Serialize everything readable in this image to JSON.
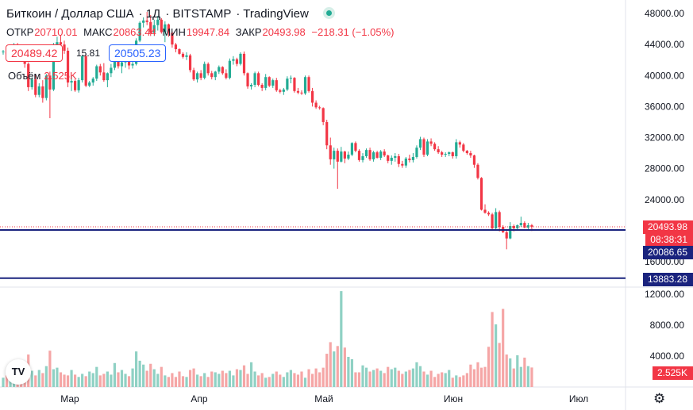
{
  "header": {
    "symbol": "Биткоин / Доллар США",
    "interval": "1Д",
    "exchange": "BITSTAMP",
    "source": "TradingView",
    "status_color": "#22ab94"
  },
  "ohlc": {
    "open_label": "ОТКР",
    "open": "20710.01",
    "high_label": "МАКС",
    "high": "20863.44",
    "low_label": "МИН",
    "low": "19947.84",
    "close_label": "ЗАКР",
    "close": "20493.98",
    "change": "−218.31 (−1.05%)"
  },
  "trade": {
    "sell": "20489.42",
    "spread": "15.81",
    "buy": "20505.23"
  },
  "volume": {
    "label": "Объём",
    "value": "2.525K"
  },
  "price_axis": {
    "ticks": [
      "48000.00",
      "44000.00",
      "40000.00",
      "36000.00",
      "32000.00",
      "28000.00",
      "24000.00",
      "16000.00"
    ],
    "last_price": "20493.98",
    "countdown": "08:38:31",
    "line1": "20086.65",
    "line2": "13883.28"
  },
  "volume_axis": {
    "ticks": [
      "12000.00",
      "8000.00",
      "4000.00"
    ],
    "last_volume": "2.525K"
  },
  "time_axis": {
    "labels": [
      "Мар",
      "Апр",
      "Май",
      "Июн",
      "Июл"
    ]
  },
  "colors": {
    "up": "#22ab94",
    "down": "#f23645",
    "vol_up": "#8fd1c4",
    "vol_down": "#f5a6a6",
    "hline": "#1a237e",
    "price_line": "#f23645"
  },
  "chart_data": {
    "type": "candlestick",
    "title": "Биткоин / Доллар США",
    "price_ylim": [
      13000,
      49000
    ],
    "volume_ylim": [
      0,
      12500
    ],
    "horizontal_lines": [
      20086.65,
      13883.28
    ],
    "x_labels": [
      "Мар",
      "Апр",
      "Май",
      "Июн",
      "Июл"
    ],
    "candles": [
      [
        43000,
        43300,
        42700,
        43100
      ],
      [
        43100,
        43400,
        42600,
        42800
      ],
      [
        42800,
        43600,
        42500,
        43400
      ],
      [
        43400,
        44200,
        43200,
        44000
      ],
      [
        44000,
        44200,
        42500,
        43000
      ],
      [
        43000,
        43500,
        41800,
        42100
      ],
      [
        42100,
        42800,
        41000,
        41500
      ],
      [
        41500,
        41700,
        38000,
        38500
      ],
      [
        38500,
        39800,
        38200,
        39500
      ],
      [
        39500,
        40200,
        37200,
        37500
      ],
      [
        37500,
        39000,
        37200,
        38600
      ],
      [
        38600,
        39400,
        36500,
        37100
      ],
      [
        37100,
        40200,
        36800,
        40000
      ],
      [
        40000,
        40500,
        34500,
        38200
      ],
      [
        38200,
        44200,
        38000,
        43500
      ],
      [
        43500,
        45000,
        43000,
        44300
      ],
      [
        44300,
        45200,
        43800,
        44000
      ],
      [
        44000,
        44500,
        42800,
        43200
      ],
      [
        43200,
        43600,
        38500,
        39100
      ],
      [
        39100,
        40000,
        38000,
        39300
      ],
      [
        39300,
        39500,
        37900,
        38100
      ],
      [
        38100,
        39700,
        37800,
        39400
      ],
      [
        39400,
        42600,
        39100,
        42500
      ],
      [
        42500,
        42800,
        38500,
        38700
      ],
      [
        38700,
        39300,
        38500,
        39100
      ],
      [
        39100,
        39800,
        38700,
        39600
      ],
      [
        39600,
        41400,
        39300,
        41200
      ],
      [
        41200,
        41500,
        40000,
        40400
      ],
      [
        40400,
        41600,
        39200,
        39400
      ],
      [
        39400,
        40400,
        38500,
        40300
      ],
      [
        40300,
        41500,
        39800,
        41000
      ],
      [
        41000,
        42300,
        40700,
        41900
      ],
      [
        41900,
        42200,
        40900,
        41200
      ],
      [
        41200,
        42100,
        40300,
        41700
      ],
      [
        41700,
        42500,
        41000,
        42300
      ],
      [
        42300,
        42600,
        40800,
        41300
      ],
      [
        41300,
        41800,
        40900,
        41500
      ],
      [
        41500,
        44800,
        41300,
        44500
      ],
      [
        44500,
        47000,
        44300,
        46800
      ],
      [
        46800,
        47500,
        46200,
        47100
      ],
      [
        47100,
        48200,
        46500,
        46900
      ],
      [
        46900,
        47800,
        45100,
        45500
      ],
      [
        45500,
        47200,
        45100,
        46500
      ],
      [
        46500,
        47700,
        45800,
        47200
      ],
      [
        47200,
        47400,
        45400,
        45600
      ],
      [
        45600,
        47000,
        44300,
        46600
      ],
      [
        46600,
        46700,
        45000,
        45500
      ],
      [
        45500,
        45700,
        43600,
        44000
      ],
      [
        44000,
        44200,
        43000,
        43400
      ],
      [
        43400,
        43500,
        42700,
        42800
      ],
      [
        42800,
        43000,
        42200,
        42400
      ],
      [
        42400,
        43000,
        42000,
        42600
      ],
      [
        42600,
        42800,
        40400,
        40700
      ],
      [
        40700,
        41000,
        39300,
        39500
      ],
      [
        39500,
        40500,
        39100,
        40300
      ],
      [
        40300,
        40700,
        39400,
        39700
      ],
      [
        39700,
        41800,
        39500,
        41500
      ],
      [
        41500,
        41700,
        40000,
        40300
      ],
      [
        40300,
        40600,
        39500,
        39800
      ],
      [
        39800,
        40600,
        39400,
        40500
      ],
      [
        40500,
        41300,
        40200,
        41100
      ],
      [
        41100,
        41200,
        40100,
        40300
      ],
      [
        40300,
        40800,
        39500,
        39700
      ],
      [
        39700,
        42200,
        39500,
        41900
      ],
      [
        41900,
        42500,
        41400,
        42100
      ],
      [
        42100,
        42300,
        41200,
        41500
      ],
      [
        41500,
        43000,
        41300,
        42800
      ],
      [
        42800,
        43100,
        40000,
        40300
      ],
      [
        40300,
        40400,
        38300,
        38600
      ],
      [
        38600,
        39000,
        38200,
        38800
      ],
      [
        38800,
        40500,
        38500,
        40300
      ],
      [
        40300,
        40500,
        38600,
        38800
      ],
      [
        38800,
        39000,
        38000,
        38400
      ],
      [
        38400,
        40200,
        38100,
        39800
      ],
      [
        39800,
        39900,
        38500,
        38700
      ],
      [
        38700,
        39600,
        38400,
        39400
      ],
      [
        39400,
        39700,
        37900,
        38100
      ],
      [
        38100,
        38300,
        37700,
        37900
      ],
      [
        37900,
        38400,
        37500,
        38200
      ],
      [
        38200,
        39900,
        38000,
        39600
      ],
      [
        39600,
        40000,
        39000,
        39700
      ],
      [
        39700,
        39800,
        37800,
        38000
      ],
      [
        38000,
        38400,
        37600,
        37800
      ],
      [
        37800,
        38100,
        37500,
        37700
      ],
      [
        37700,
        40000,
        37500,
        39800
      ],
      [
        39800,
        40000,
        37800,
        38000
      ],
      [
        38000,
        38400,
        36000,
        36500
      ],
      [
        36500,
        36800,
        35700,
        35900
      ],
      [
        35900,
        36100,
        35600,
        35800
      ],
      [
        35800,
        35900,
        33600,
        34000
      ],
      [
        34000,
        34300,
        30500,
        31000
      ],
      [
        31000,
        32000,
        28500,
        29200
      ],
      [
        29200,
        30700,
        28000,
        30300
      ],
      [
        30300,
        30600,
        25400,
        28900
      ],
      [
        28900,
        30800,
        28800,
        30200
      ],
      [
        30200,
        30300,
        28700,
        29300
      ],
      [
        29300,
        30200,
        29100,
        29800
      ],
      [
        29800,
        31400,
        29600,
        31300
      ],
      [
        31300,
        31500,
        30100,
        30300
      ],
      [
        30300,
        30500,
        28900,
        29100
      ],
      [
        29100,
        30000,
        28800,
        29600
      ],
      [
        29600,
        30600,
        29400,
        30400
      ],
      [
        30400,
        30700,
        29000,
        29200
      ],
      [
        29200,
        30300,
        28900,
        30100
      ],
      [
        30100,
        30300,
        29300,
        29400
      ],
      [
        29400,
        30400,
        29100,
        30200
      ],
      [
        30200,
        30500,
        29500,
        29700
      ],
      [
        29700,
        29800,
        28700,
        29000
      ],
      [
        29000,
        29700,
        28500,
        29400
      ],
      [
        29400,
        30000,
        28900,
        29600
      ],
      [
        29600,
        29900,
        28200,
        28600
      ],
      [
        28600,
        29000,
        28100,
        28400
      ],
      [
        28400,
        29500,
        28100,
        29300
      ],
      [
        29300,
        29800,
        28800,
        29100
      ],
      [
        29100,
        30000,
        28800,
        29500
      ],
      [
        29500,
        31000,
        29300,
        30700
      ],
      [
        30700,
        32100,
        30400,
        31800
      ],
      [
        31800,
        32000,
        29500,
        29800
      ],
      [
        29800,
        31800,
        29600,
        31500
      ],
      [
        31500,
        31900,
        30900,
        31200
      ],
      [
        31200,
        31400,
        30300,
        30500
      ],
      [
        30500,
        30900,
        29900,
        30100
      ],
      [
        30100,
        30300,
        29500,
        29800
      ],
      [
        29800,
        30100,
        29500,
        29900
      ],
      [
        29900,
        30200,
        29600,
        30100
      ],
      [
        30100,
        30200,
        29300,
        29600
      ],
      [
        29600,
        31800,
        29300,
        31400
      ],
      [
        31400,
        31600,
        30700,
        31100
      ],
      [
        31100,
        31300,
        30100,
        30300
      ],
      [
        30300,
        30400,
        29800,
        30000
      ],
      [
        30000,
        30300,
        29400,
        29700
      ],
      [
        29700,
        29800,
        28100,
        28500
      ],
      [
        28500,
        28700,
        26600,
        26800
      ],
      [
        26800,
        26900,
        22600,
        22700
      ],
      [
        22700,
        23400,
        22200,
        22300
      ],
      [
        22300,
        22500,
        21900,
        22100
      ],
      [
        22100,
        22300,
        20100,
        20300
      ],
      [
        20300,
        22900,
        20000,
        22400
      ],
      [
        22400,
        22600,
        19900,
        20500
      ],
      [
        20500,
        20700,
        19700,
        19800
      ],
      [
        19800,
        20200,
        17600,
        19000
      ],
      [
        19000,
        21100,
        18900,
        20600
      ],
      [
        20600,
        20800,
        19900,
        20300
      ],
      [
        20300,
        20800,
        20000,
        20700
      ],
      [
        20700,
        21800,
        20500,
        21000
      ],
      [
        21000,
        21200,
        20300,
        20400
      ],
      [
        20400,
        21000,
        20100,
        20700
      ],
      [
        20710,
        20863,
        19948,
        20494
      ]
    ],
    "volumes": [
      1200,
      1500,
      1300,
      1900,
      2400,
      1100,
      2600,
      4200,
      2100,
      1500,
      2200,
      1800,
      2700,
      4700,
      2300,
      2500,
      1900,
      1600,
      1500,
      2200,
      1600,
      1300,
      1700,
      1400,
      2000,
      1800,
      2600,
      1500,
      1700,
      2000,
      1600,
      3100,
      1900,
      2200,
      1700,
      1400,
      2400,
      4600,
      3400,
      2900,
      2100,
      3000,
      2300,
      1700,
      2600,
      1500,
      1300,
      1800,
      1300,
      2000,
      1400,
      1300,
      2200,
      2400,
      1600,
      1400,
      1800,
      1300,
      2000,
      1900,
      1700,
      2100,
      1800,
      2100,
      1500,
      2300,
      2200,
      2800,
      1700,
      3200,
      2000,
      1500,
      1800,
      1200,
      1300,
      1700,
      2000,
      1600,
      1300,
      1900,
      2200,
      1800,
      1600,
      2000,
      1200,
      2300,
      1700,
      2400,
      1900,
      2500,
      4300,
      5800,
      4600,
      5300,
      12400,
      5100,
      3900,
      3600,
      1900,
      1900,
      2800,
      2500,
      2000,
      2200,
      2400,
      2100,
      1800,
      2600,
      2300,
      2500,
      2100,
      1700,
      2000,
      2200,
      2400,
      3200,
      2700,
      2000,
      1600,
      2100,
      1300,
      1700,
      1900,
      1800,
      2200,
      1200,
      1500,
      1300,
      1500,
      1800,
      2900,
      2300,
      3200,
      2500,
      2600,
      5200,
      9700,
      8100,
      5700,
      10100,
      4200,
      3700,
      2400,
      4100,
      2600,
      3800,
      2700,
      2525
    ]
  }
}
